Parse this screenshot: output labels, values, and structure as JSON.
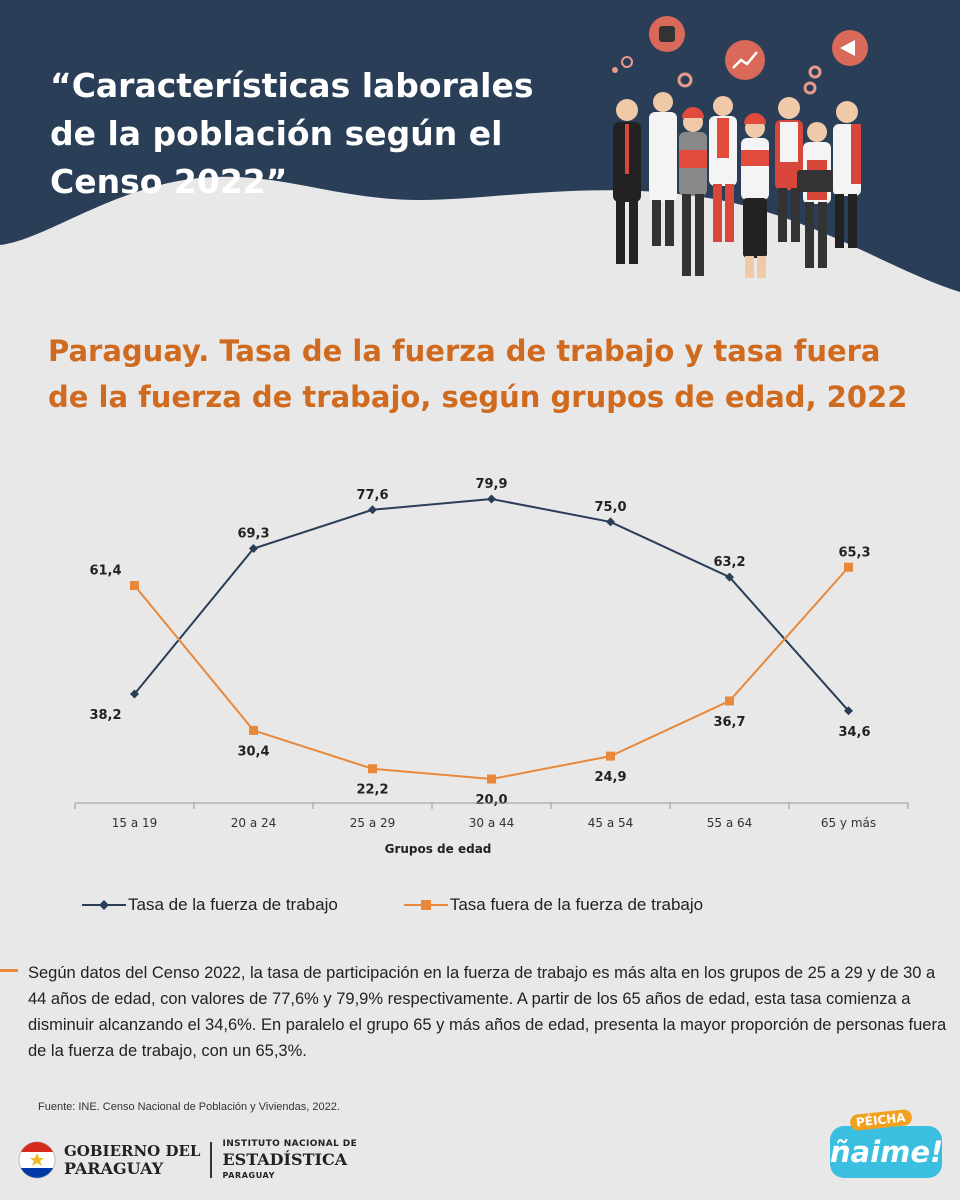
{
  "header": {
    "title": "“Características laborales\nde la población según el\nCenso 2022”"
  },
  "chart_title": "Paraguay. Tasa de la fuerza de trabajo y tasa fuera\nde la fuerza de trabajo, según grupos de edad, 2022",
  "colors": {
    "header_bg": "#2b3e57",
    "series_1": "#2b3e57",
    "series_2": "#e8883a",
    "title_accent": "#cf6a1e",
    "background": "#e8e8e8"
  },
  "chart_data": {
    "type": "line",
    "categories": [
      "15 a 19",
      "20 a 24",
      "25 a 29",
      "30 a 44",
      "45 a 54",
      "55 a 64",
      "65 y más"
    ],
    "xlabel": "Grupos de edad",
    "ylabel": "",
    "ylim": [
      0,
      100
    ],
    "series": [
      {
        "name": "Tasa de la fuerza de trabajo",
        "marker": "diamond",
        "values": [
          38.2,
          69.3,
          77.6,
          79.9,
          75.0,
          63.2,
          34.6
        ],
        "labels": [
          "38,2",
          "69,3",
          "77,6",
          "79,9",
          "75,0",
          "63,2",
          "34,6"
        ]
      },
      {
        "name": "Tasa fuera de la fuerza de trabajo",
        "marker": "square",
        "values": [
          61.4,
          30.4,
          22.2,
          20.0,
          24.9,
          36.7,
          65.3
        ],
        "labels": [
          "61,4",
          "30,4",
          "22,2",
          "20,0",
          "24,9",
          "36,7",
          "65,3"
        ]
      }
    ],
    "grid": false,
    "legend_position": "bottom-left"
  },
  "summary": "Según datos del Censo 2022, la tasa de participación en la fuerza de trabajo es más alta en los grupos de 25 a 29 y de 30 a 44 años de edad, con valores de  77,6% y 79,9% respectivamente. A partir de los 65 años de edad, esta tasa comienza a disminuir alcanzando el 34,6%. En paralelo el grupo 65 y más años de edad, presenta la mayor proporción de personas fuera de la fuerza de trabajo, con un 65,3%.",
  "source": "Fuente: INE. Censo Nacional de Población y Viviendas, 2022.",
  "footer": {
    "gov_line1": "GOBIERNO DEL",
    "gov_line2": "PARAGUAY",
    "ine_line1": "INSTITUTO NACIONAL DE",
    "ine_line2": "ESTADÍSTICA",
    "ine_line3": "PARAGUAY",
    "brand_top": "PÉICHA",
    "brand_main": "ñaime!"
  }
}
